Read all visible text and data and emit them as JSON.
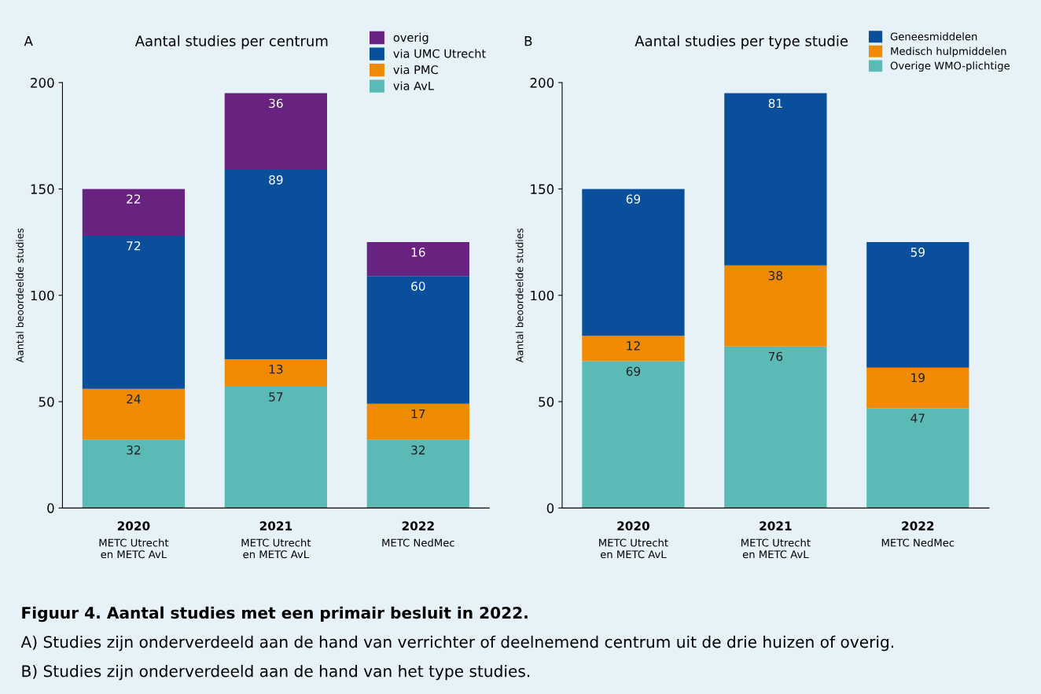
{
  "chart_data": [
    {
      "type": "bar",
      "stacked": true,
      "title": "Aantal studies per centrum",
      "ylabel": "Aantal beoordeelde studies",
      "categories": [
        "2020\nMETC Utrecht\nen METC AvL",
        "2021\nMETC Utrecht\nen METC AvL",
        "2022\nMETC NedMec"
      ],
      "series": [
        {
          "name": "via AvL",
          "color": "#5bbab6",
          "values": [
            32,
            57,
            32
          ]
        },
        {
          "name": "via PMC",
          "color": "#f08a00",
          "values": [
            24,
            13,
            17
          ]
        },
        {
          "name": "via UMC Utrecht",
          "color": "#0a4f9c",
          "values": [
            72,
            89,
            60
          ]
        },
        {
          "name": "overig",
          "color": "#67237f",
          "values": [
            22,
            36,
            16
          ]
        }
      ],
      "ylim": [
        0,
        200
      ],
      "yticks": [
        0,
        50,
        100,
        150,
        200
      ],
      "data_labels": true,
      "legend": "top right",
      "annotations": [
        "A"
      ]
    },
    {
      "type": "bar",
      "stacked": true,
      "title": "Aantal studies per type studie",
      "ylabel": "Aantal beoordeelde studies",
      "categories": [
        "2020\nMETC Utrecht\nen METC AvL",
        "2021\nMETC Utrecht\nen METC AvL",
        "2022\nMETC NedMec"
      ],
      "series": [
        {
          "name": "Overige WMO-plichtige",
          "color": "#5bbab6",
          "values": [
            69,
            76,
            47
          ]
        },
        {
          "name": "Medisch hulpmiddelen",
          "color": "#f08a00",
          "values": [
            12,
            38,
            19
          ]
        },
        {
          "name": "Geneesmiddelen",
          "color": "#0a4f9c",
          "values": [
            69,
            81,
            59
          ]
        }
      ],
      "ylim": [
        0,
        200
      ],
      "yticks": [
        0,
        50,
        100,
        150,
        200
      ],
      "data_labels": true,
      "legend": "top right",
      "annotations": [
        "B",
        "Figuur 4. Aantal studies met een primair besluit in 2022.",
        "A) Studies zijn onderverdeeld aan de hand van verrichter of deelnemend centrum uit de drie huizen of overig.",
        "B) Studies zijn onderverdeeld aan de hand van het type studies."
      ]
    }
  ]
}
